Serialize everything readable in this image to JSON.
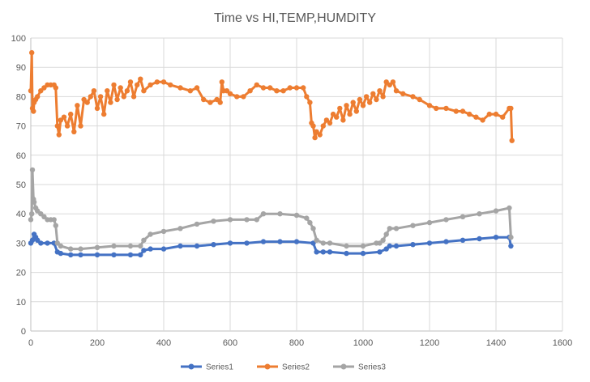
{
  "chart_data": {
    "type": "scatter",
    "title": "Time vs HI,TEMP,HUMDITY",
    "xlim": [
      0,
      1600
    ],
    "ylim": [
      0,
      100
    ],
    "x_ticks": [
      0,
      200,
      400,
      600,
      800,
      1000,
      1200,
      1400,
      1600
    ],
    "y_ticks": [
      0,
      10,
      20,
      30,
      40,
      50,
      60,
      70,
      80,
      90,
      100
    ],
    "grid": true,
    "legend_position": "bottom",
    "series": [
      {
        "name": "Series1",
        "color": "#4472c4",
        "x": [
          0,
          5,
          10,
          15,
          20,
          30,
          50,
          70,
          80,
          90,
          120,
          150,
          200,
          250,
          300,
          330,
          340,
          360,
          400,
          450,
          500,
          550,
          600,
          650,
          700,
          750,
          800,
          850,
          860,
          880,
          900,
          950,
          1000,
          1050,
          1070,
          1080,
          1100,
          1150,
          1200,
          1250,
          1300,
          1350,
          1400,
          1440,
          1445
        ],
        "y": [
          30,
          31,
          33,
          32,
          31,
          30,
          30,
          30,
          27,
          26.5,
          26,
          26,
          26,
          26,
          26,
          26,
          27.5,
          28,
          28,
          29,
          29,
          29.5,
          30,
          30,
          30.5,
          30.5,
          30.5,
          30,
          27,
          27,
          27,
          26.5,
          26.5,
          27,
          28,
          29,
          29,
          29.5,
          30,
          30.5,
          31,
          31.5,
          32,
          32,
          29
        ]
      },
      {
        "name": "Series2",
        "color": "#ed7d31",
        "x": [
          0,
          3,
          5,
          8,
          10,
          15,
          20,
          30,
          40,
          50,
          60,
          70,
          75,
          80,
          85,
          90,
          100,
          110,
          120,
          130,
          140,
          150,
          160,
          170,
          180,
          190,
          200,
          210,
          220,
          230,
          240,
          250,
          260,
          270,
          280,
          290,
          300,
          310,
          320,
          330,
          340,
          360,
          380,
          400,
          420,
          450,
          480,
          500,
          520,
          540,
          560,
          570,
          575,
          580,
          590,
          600,
          620,
          640,
          660,
          680,
          700,
          720,
          740,
          760,
          780,
          800,
          820,
          830,
          840,
          845,
          850,
          855,
          860,
          870,
          880,
          890,
          900,
          910,
          920,
          930,
          940,
          950,
          960,
          970,
          980,
          990,
          1000,
          1010,
          1020,
          1030,
          1040,
          1050,
          1060,
          1070,
          1080,
          1090,
          1100,
          1120,
          1150,
          1170,
          1200,
          1220,
          1250,
          1280,
          1300,
          1320,
          1340,
          1360,
          1380,
          1400,
          1420,
          1440,
          1445,
          1448
        ],
        "y": [
          82,
          95,
          76,
          75,
          78,
          79,
          80,
          82,
          83,
          84,
          84,
          84,
          83,
          70,
          67,
          72,
          73,
          70,
          74,
          68,
          77,
          70,
          79,
          78,
          80,
          82,
          76,
          80,
          74,
          82,
          78,
          84,
          79,
          83,
          80,
          82,
          85,
          80,
          84,
          86,
          82,
          84,
          85,
          85,
          84,
          83,
          82,
          83,
          79,
          78,
          79,
          78,
          85,
          82,
          82,
          81,
          80,
          80,
          82,
          84,
          83,
          83,
          82,
          82,
          83,
          83,
          83,
          80,
          78,
          71,
          70,
          66,
          68,
          67,
          70,
          72,
          71,
          74,
          73,
          76,
          72,
          77,
          74,
          78,
          75,
          79,
          77,
          80,
          78,
          81,
          79,
          82,
          80,
          85,
          84,
          85,
          82,
          81,
          80,
          79,
          77,
          76,
          76,
          75,
          75,
          74,
          73,
          72,
          74,
          74,
          73,
          76,
          76,
          65
        ]
      },
      {
        "name": "Series3",
        "color": "#a5a5a5",
        "x": [
          0,
          3,
          5,
          8,
          10,
          15,
          20,
          30,
          40,
          50,
          60,
          70,
          75,
          80,
          90,
          120,
          150,
          200,
          250,
          300,
          330,
          340,
          360,
          400,
          450,
          500,
          550,
          600,
          650,
          680,
          700,
          750,
          800,
          830,
          840,
          850,
          860,
          880,
          900,
          950,
          1000,
          1040,
          1050,
          1060,
          1070,
          1080,
          1100,
          1150,
          1200,
          1250,
          1300,
          1350,
          1400,
          1440,
          1445
        ],
        "y": [
          38,
          40,
          55,
          45,
          44,
          42,
          41,
          40,
          39,
          38,
          38,
          38,
          36,
          30,
          29,
          28,
          28,
          28.5,
          29,
          29,
          29,
          31,
          33,
          34,
          35,
          36.5,
          37.5,
          38,
          38,
          38,
          40,
          40,
          39.5,
          38.5,
          37,
          35,
          31,
          30,
          30,
          29,
          29,
          30,
          30,
          31,
          33,
          35,
          35,
          36,
          37,
          38,
          39,
          40,
          41,
          42,
          32
        ]
      }
    ]
  }
}
